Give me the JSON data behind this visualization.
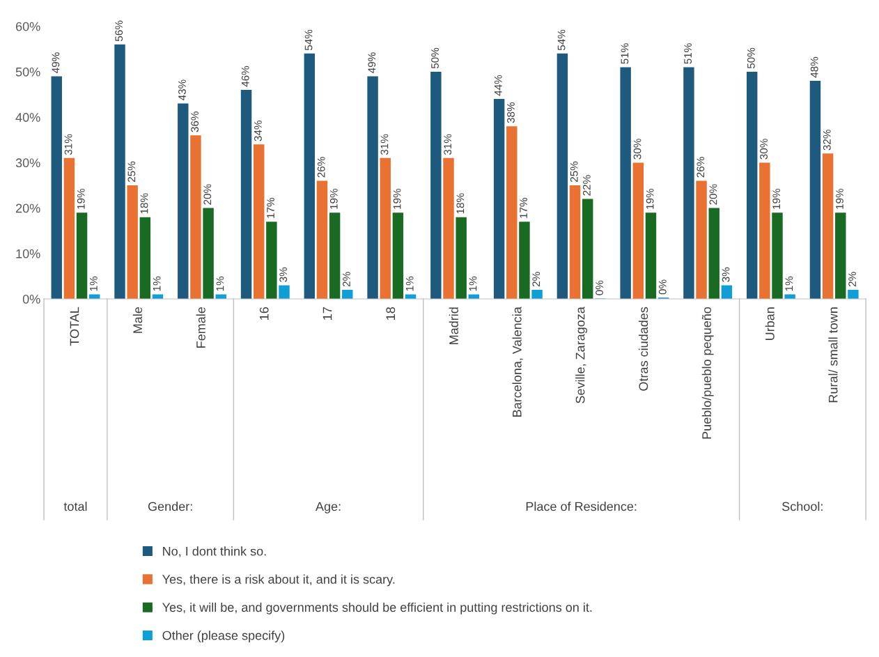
{
  "chart_data": {
    "type": "bar",
    "categories": [
      "TOTAL",
      "Male",
      "Female",
      "16",
      "17",
      "18",
      "Madrid",
      "Barcelona, Valencia",
      "Seville, Zaragoza",
      "Otras ciudades",
      "Pueblo/pueblo pequeño",
      "Urban",
      "Rural/ small town"
    ],
    "series": [
      {
        "name": "No, I dont think so.",
        "color": "#1d5a7e",
        "values": [
          49,
          56,
          43,
          46,
          54,
          49,
          50,
          44,
          54,
          51,
          51,
          50,
          48
        ],
        "value_labels": [
          "49%",
          "56%",
          "43%",
          "46%",
          "54%",
          "49%",
          "50%",
          "44%",
          "54%",
          "51%",
          "51%",
          "50%",
          "48%"
        ]
      },
      {
        "name": "Yes, there is a risk about it, and it is scary.",
        "color": "#e97132",
        "values": [
          31,
          25,
          36,
          34,
          26,
          31,
          31,
          38,
          25,
          30,
          26,
          30,
          32
        ],
        "value_labels": [
          "31%",
          "25%",
          "36%",
          "34%",
          "26%",
          "31%",
          "31%",
          "38%",
          "25%",
          "30%",
          "26%",
          "30%",
          "32%"
        ]
      },
      {
        "name": "Yes, it will be, and governments should be efficient in putting restrictions on it.",
        "color": "#196b24",
        "values": [
          19,
          18,
          20,
          17,
          19,
          19,
          18,
          17,
          22,
          19,
          20,
          19,
          19
        ],
        "value_labels": [
          "19%",
          "18%",
          "20%",
          "17%",
          "19%",
          "19%",
          "18%",
          "17%",
          "22%",
          "19%",
          "20%",
          "19%",
          "19%"
        ]
      },
      {
        "name": "Other (please specify)",
        "color": "#0f9ed5",
        "values": [
          1,
          1,
          1,
          3,
          2,
          1,
          1,
          2,
          0.1,
          0.3,
          3,
          1,
          2
        ],
        "value_labels": [
          "1%",
          "1%",
          "1%",
          "3%",
          "2%",
          "1%",
          "1%",
          "2%",
          "0%",
          "0%",
          "3%",
          "1%",
          "2%"
        ]
      }
    ],
    "ylim": [
      0,
      60
    ],
    "yticks": [
      {
        "value": 0,
        "label": "0%"
      },
      {
        "value": 10,
        "label": "10%"
      },
      {
        "value": 20,
        "label": "20%"
      },
      {
        "value": 30,
        "label": "30%"
      },
      {
        "value": 40,
        "label": "40%"
      },
      {
        "value": 50,
        "label": "50%"
      },
      {
        "value": 60,
        "label": "60%"
      }
    ],
    "grid": false,
    "legend": "bottom",
    "annotations": [
      "total",
      "Gender:",
      "Age:",
      "Place of Residence:",
      "School:"
    ]
  }
}
